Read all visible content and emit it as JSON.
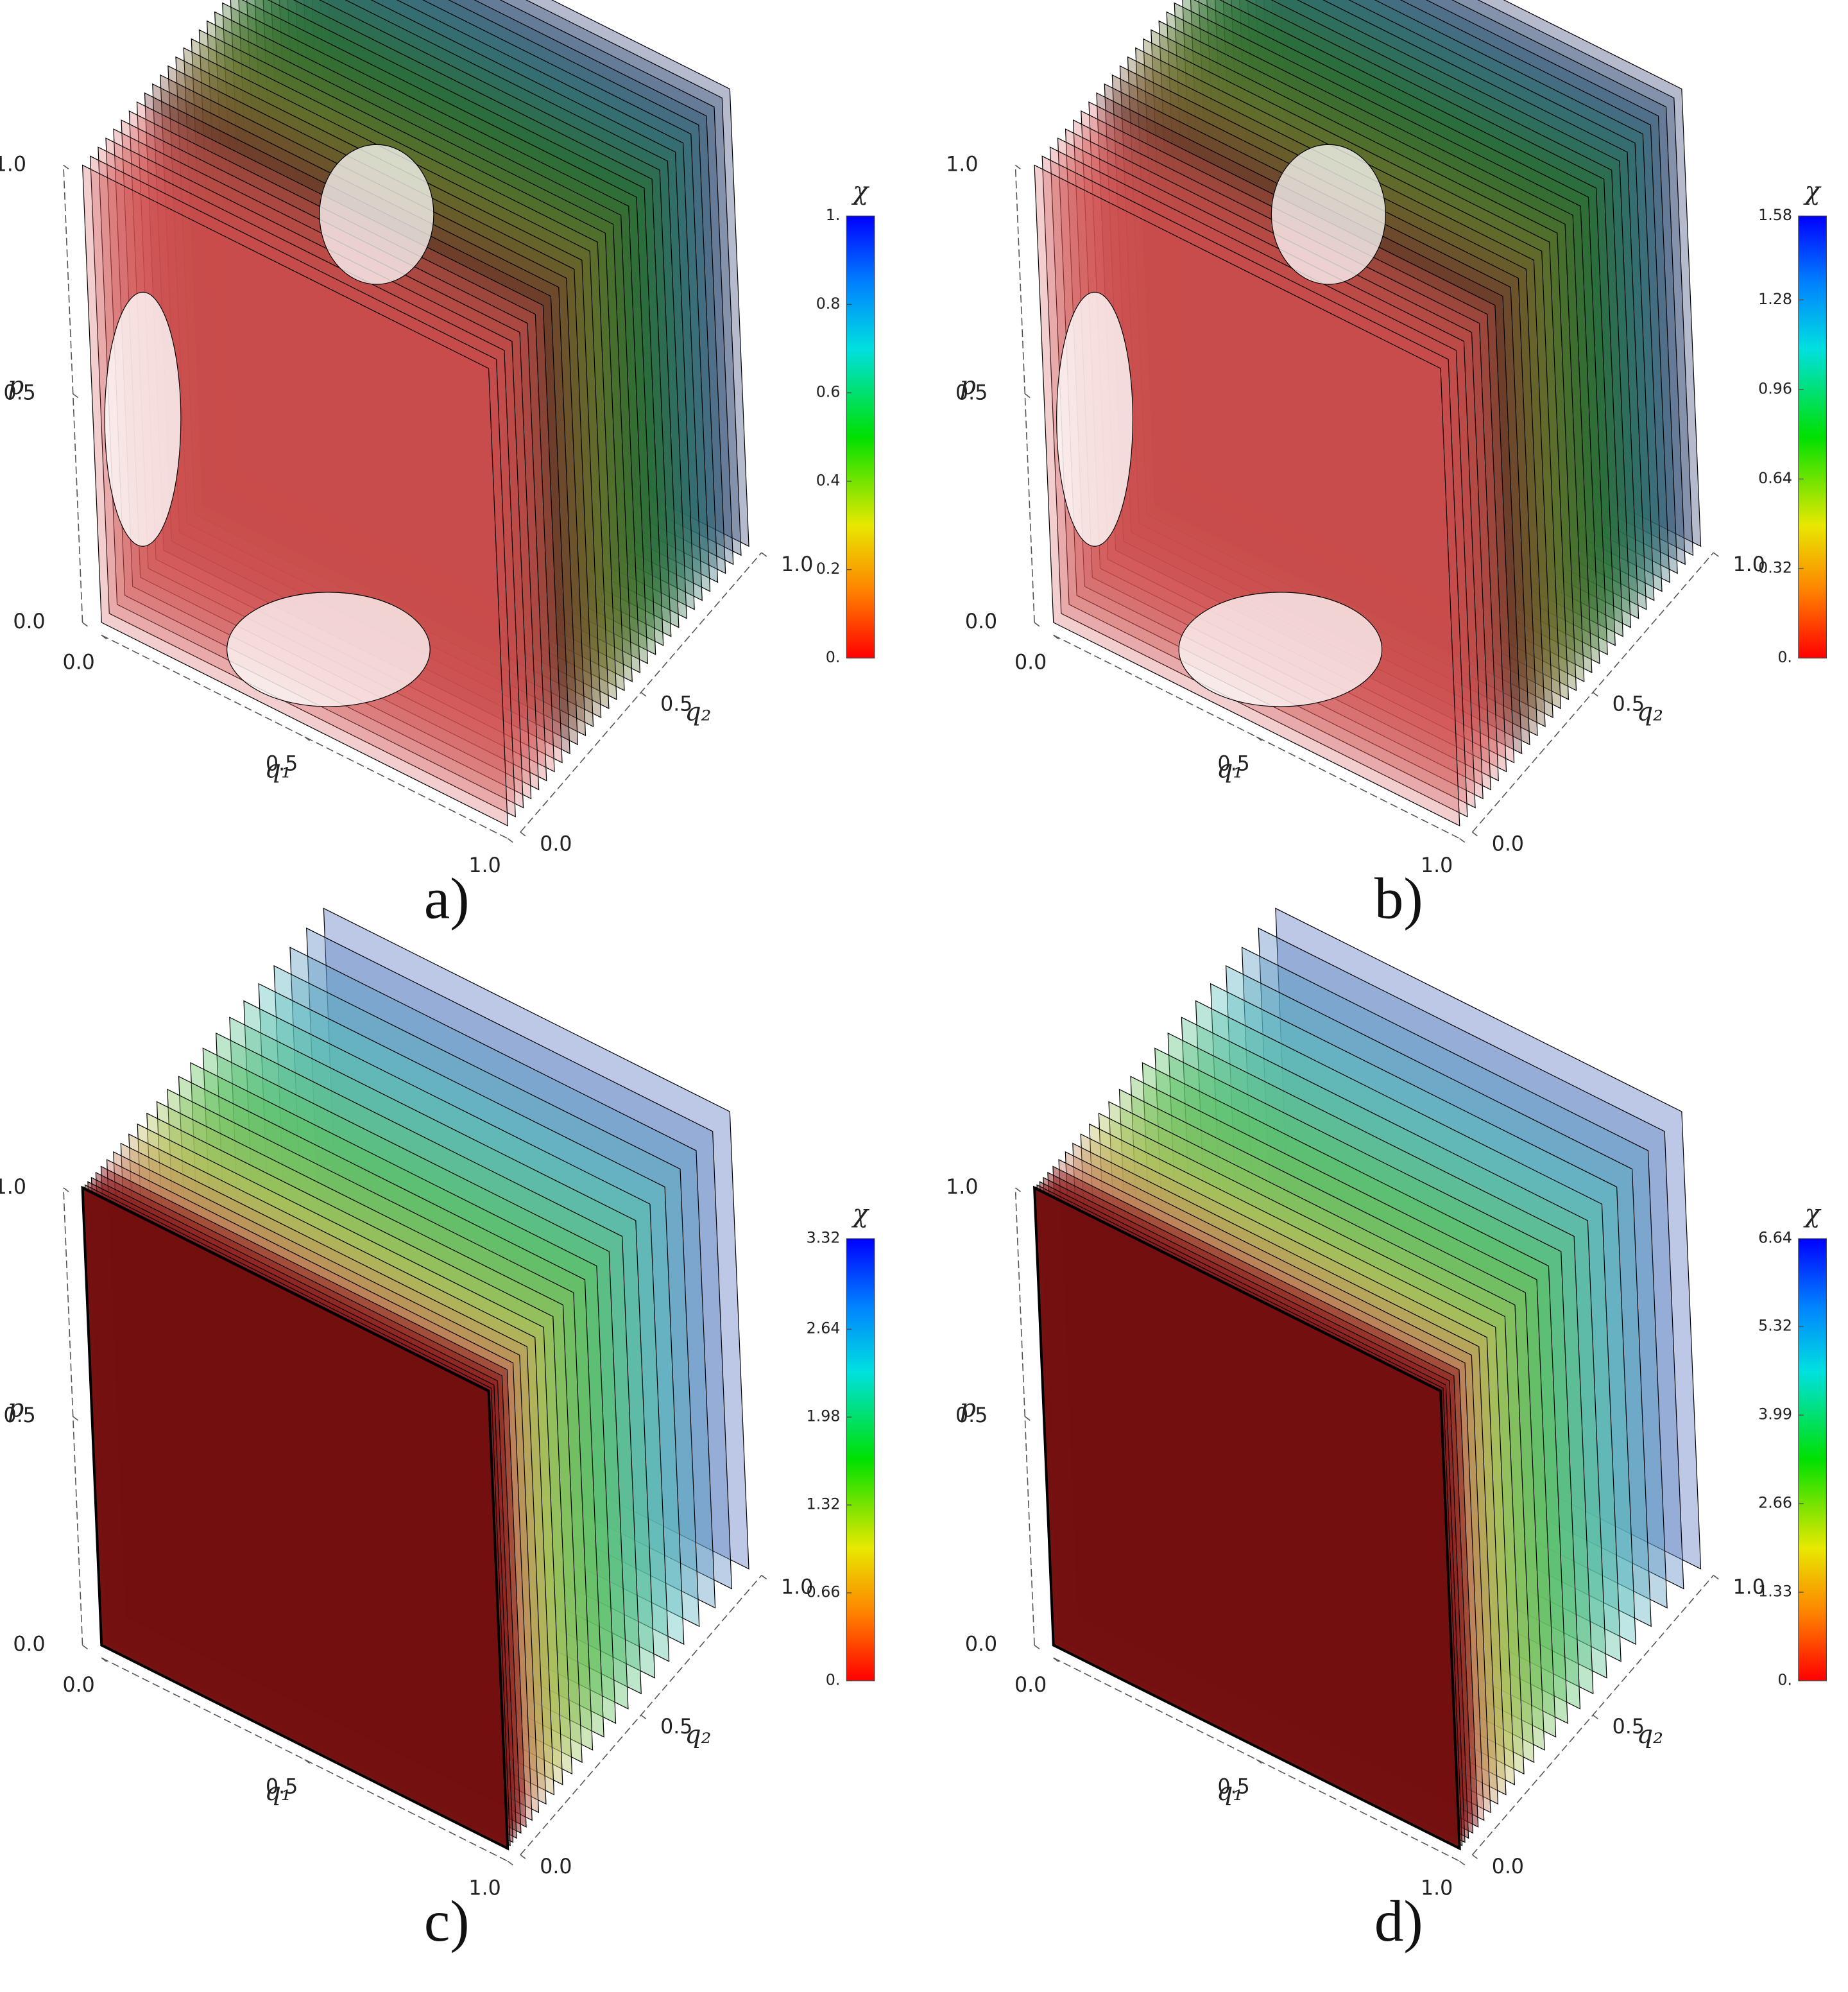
{
  "chart_data": [
    {
      "type": "contour3d",
      "panel_label": "a)",
      "xlabel": "q₁",
      "ylabel": "q₂",
      "zlabel": "p",
      "xlim": [
        0,
        1
      ],
      "xticks": [
        {
          "value": 0,
          "label": "0.0"
        },
        0.5,
        {
          "value": 1,
          "label": "1.0"
        }
      ],
      "ylim": [
        0,
        1
      ],
      "yticks": [
        {
          "value": 0,
          "label": "0.0"
        },
        0.5,
        {
          "value": 1,
          "label": "1.0"
        }
      ],
      "zlim": [
        0,
        1
      ],
      "zticks": [
        {
          "value": 0,
          "label": "0.0"
        },
        0.5,
        {
          "value": 1,
          "label": "1.0"
        }
      ],
      "colorbar": {
        "label": "χ",
        "lim": [
          0,
          1
        ],
        "ticks": [
          {
            "value": 0,
            "label": "0."
          },
          0.2,
          0.4,
          0.6,
          0.8,
          {
            "value": 1,
            "label": "1."
          }
        ]
      }
    },
    {
      "type": "contour3d",
      "panel_label": "b)",
      "xlabel": "q₁",
      "ylabel": "q₂",
      "zlabel": "p",
      "xlim": [
        0,
        1
      ],
      "xticks": [
        {
          "value": 0,
          "label": "0.0"
        },
        0.5,
        {
          "value": 1,
          "label": "1.0"
        }
      ],
      "ylim": [
        0,
        1
      ],
      "yticks": [
        {
          "value": 0,
          "label": "0.0"
        },
        0.5,
        {
          "value": 1,
          "label": "1.0"
        }
      ],
      "zlim": [
        0,
        1
      ],
      "zticks": [
        {
          "value": 0,
          "label": "0.0"
        },
        0.5,
        {
          "value": 1,
          "label": "1.0"
        }
      ],
      "colorbar": {
        "label": "χ",
        "lim": [
          0,
          1.58
        ],
        "ticks": [
          {
            "value": 0,
            "label": "0."
          },
          0.32,
          0.64,
          0.96,
          1.28,
          1.58
        ]
      }
    },
    {
      "type": "contour3d",
      "panel_label": "c)",
      "xlabel": "q₁",
      "ylabel": "q₂",
      "zlabel": "p",
      "xlim": [
        0,
        1
      ],
      "xticks": [
        {
          "value": 0,
          "label": "0.0"
        },
        0.5,
        {
          "value": 1,
          "label": "1.0"
        }
      ],
      "ylim": [
        0,
        1
      ],
      "yticks": [
        {
          "value": 0,
          "label": "0.0"
        },
        0.5,
        {
          "value": 1,
          "label": "1.0"
        }
      ],
      "zlim": [
        0,
        1
      ],
      "zticks": [
        {
          "value": 0,
          "label": "0.0"
        },
        0.5,
        {
          "value": 1,
          "label": "1.0"
        }
      ],
      "colorbar": {
        "label": "χ",
        "lim": [
          0,
          3.32
        ],
        "ticks": [
          {
            "value": 0,
            "label": "0."
          },
          0.66,
          1.32,
          1.98,
          2.64,
          3.32
        ]
      }
    },
    {
      "type": "contour3d",
      "panel_label": "d)",
      "xlabel": "q₁",
      "ylabel": "q₂",
      "zlabel": "p",
      "xlim": [
        0,
        1
      ],
      "xticks": [
        {
          "value": 0,
          "label": "0.0"
        },
        0.5,
        {
          "value": 1,
          "label": "1.0"
        }
      ],
      "ylim": [
        0,
        1
      ],
      "yticks": [
        {
          "value": 0,
          "label": "0.0"
        },
        0.5,
        {
          "value": 1,
          "label": "1.0"
        }
      ],
      "zlim": [
        0,
        1
      ],
      "zticks": [
        {
          "value": 0,
          "label": "0.0"
        },
        0.5,
        {
          "value": 1,
          "label": "1.0"
        }
      ],
      "colorbar": {
        "label": "χ",
        "lim": [
          0,
          6.64
        ],
        "ticks": [
          {
            "value": 0,
            "label": "0."
          },
          1.33,
          2.66,
          3.99,
          5.32,
          6.64
        ]
      }
    }
  ]
}
